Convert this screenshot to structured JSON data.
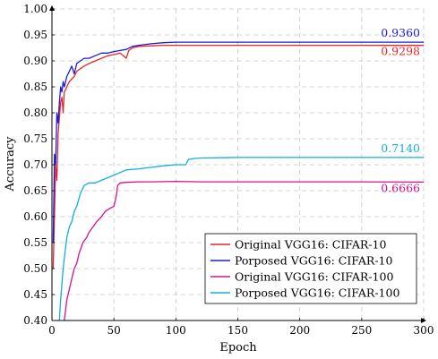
{
  "chart_data": {
    "type": "line",
    "xlabel": "Epoch",
    "ylabel": "Accuracy",
    "xlim": [
      0,
      300
    ],
    "ylim": [
      0.4,
      1.0
    ],
    "x_ticks": [
      "0",
      "50",
      "100",
      "150",
      "200",
      "250",
      "300"
    ],
    "y_ticks": [
      "0.40",
      "0.45",
      "0.50",
      "0.55",
      "0.60",
      "0.65",
      "0.70",
      "0.75",
      "0.80",
      "0.85",
      "0.90",
      "0.95",
      "1.00"
    ],
    "grid": true,
    "legend_position": "bottom-right",
    "series": [
      {
        "name": "Original VGG16: CIFAR-10",
        "color": "#e8262a",
        "final_label": "0.9298",
        "x": [
          1,
          2,
          3,
          4,
          5,
          6,
          7,
          8,
          9,
          10,
          12,
          14,
          16,
          18,
          20,
          23,
          26,
          30,
          35,
          40,
          45,
          50,
          55,
          60,
          62,
          65,
          70,
          80,
          90,
          100,
          120,
          150,
          200,
          250,
          300
        ],
        "y": [
          0.5,
          0.6,
          0.7,
          0.67,
          0.76,
          0.79,
          0.82,
          0.83,
          0.8,
          0.84,
          0.85,
          0.86,
          0.865,
          0.87,
          0.88,
          0.885,
          0.89,
          0.895,
          0.9,
          0.905,
          0.91,
          0.912,
          0.915,
          0.905,
          0.92,
          0.925,
          0.928,
          0.929,
          0.93,
          0.93,
          0.93,
          0.93,
          0.93,
          0.93,
          0.9298
        ]
      },
      {
        "name": "Porposed VGG16: CIFAR-10",
        "color": "#1c1cd8",
        "final_label": "0.9360",
        "x": [
          1,
          2,
          3,
          4,
          5,
          6,
          7,
          8,
          9,
          10,
          12,
          14,
          16,
          18,
          20,
          23,
          26,
          30,
          35,
          40,
          45,
          50,
          55,
          60,
          65,
          70,
          80,
          90,
          100,
          120,
          150,
          200,
          250,
          300
        ],
        "y": [
          0.55,
          0.72,
          0.7,
          0.8,
          0.78,
          0.82,
          0.85,
          0.84,
          0.86,
          0.85,
          0.87,
          0.88,
          0.89,
          0.875,
          0.895,
          0.9,
          0.905,
          0.905,
          0.91,
          0.915,
          0.915,
          0.918,
          0.92,
          0.922,
          0.928,
          0.93,
          0.933,
          0.935,
          0.936,
          0.936,
          0.936,
          0.936,
          0.936,
          0.936
        ]
      },
      {
        "name": "Original VGG16: CIFAR-100",
        "color": "#d4148c",
        "final_label": "0.6666",
        "x": [
          10,
          12,
          14,
          16,
          18,
          20,
          22,
          25,
          28,
          30,
          33,
          36,
          40,
          43,
          46,
          50,
          52,
          53,
          55,
          60,
          70,
          80,
          100,
          120,
          150,
          200,
          250,
          300
        ],
        "y": [
          0.4,
          0.44,
          0.46,
          0.48,
          0.5,
          0.51,
          0.53,
          0.55,
          0.56,
          0.57,
          0.58,
          0.59,
          0.6,
          0.61,
          0.615,
          0.62,
          0.64,
          0.66,
          0.665,
          0.666,
          0.667,
          0.667,
          0.668,
          0.667,
          0.667,
          0.667,
          0.667,
          0.6666
        ]
      },
      {
        "name": "Porposed VGG16: CIFAR-100",
        "color": "#12aee0",
        "final_label": "0.7140",
        "x": [
          6,
          7,
          8,
          9,
          10,
          12,
          14,
          16,
          18,
          20,
          23,
          26,
          30,
          35,
          40,
          45,
          50,
          55,
          60,
          70,
          80,
          90,
          100,
          105,
          108,
          110,
          115,
          120,
          150,
          200,
          250,
          300
        ],
        "y": [
          0.4,
          0.44,
          0.47,
          0.5,
          0.52,
          0.56,
          0.58,
          0.59,
          0.61,
          0.62,
          0.645,
          0.66,
          0.665,
          0.665,
          0.67,
          0.675,
          0.68,
          0.685,
          0.69,
          0.692,
          0.695,
          0.698,
          0.7,
          0.7,
          0.7,
          0.71,
          0.712,
          0.713,
          0.714,
          0.714,
          0.714,
          0.714
        ]
      }
    ]
  }
}
